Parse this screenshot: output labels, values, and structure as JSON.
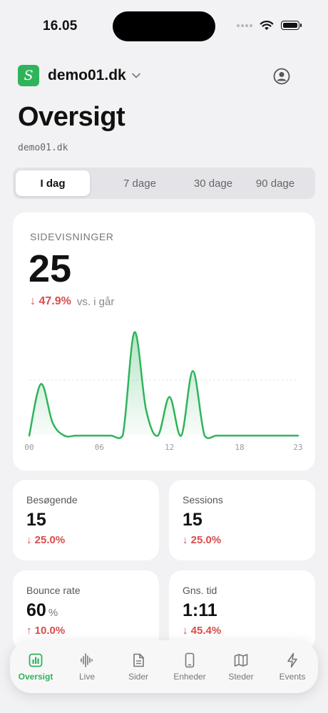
{
  "status": {
    "time": "16.05"
  },
  "header": {
    "site_name": "demo01.dk",
    "logo_letter": "S",
    "title": "Oversigt",
    "subtitle": "demo01.dk"
  },
  "periods": [
    {
      "label": "I dag",
      "active": true
    },
    {
      "label": "7 dage",
      "active": false
    },
    {
      "label": "30 dage",
      "active": false
    },
    {
      "label": "90 dage",
      "active": false
    }
  ],
  "pageviews": {
    "label": "SIDEVISNINGER",
    "value": "25",
    "delta": "↓ 47.9%",
    "delta_suffix": "vs. i går"
  },
  "chart_data": {
    "type": "area",
    "x": [
      0,
      1,
      2,
      3,
      4,
      5,
      6,
      7,
      8,
      9,
      10,
      11,
      12,
      13,
      14,
      15,
      16,
      17,
      18,
      19,
      20,
      21,
      22,
      23
    ],
    "values": [
      0,
      4,
      1,
      0,
      0,
      0,
      0,
      0,
      0,
      8,
      2,
      0,
      3,
      0,
      5,
      0,
      0,
      0,
      0,
      0,
      0,
      0,
      0,
      0
    ],
    "x_tick_labels": [
      "00",
      "06",
      "12",
      "18",
      "23"
    ],
    "color": "#2fb45a"
  },
  "stats": [
    {
      "label": "Besøgende",
      "value": "15",
      "unit": "",
      "delta": "↓ 25.0%"
    },
    {
      "label": "Sessions",
      "value": "15",
      "unit": "",
      "delta": "↓ 25.0%"
    },
    {
      "label": "Bounce rate",
      "value": "60",
      "unit": "%",
      "delta": "↑ 10.0%"
    },
    {
      "label": "Gns. tid",
      "value": "1:11",
      "unit": "",
      "delta": "↓ 45.4%"
    }
  ],
  "tabs": [
    {
      "label": "Oversigt",
      "icon": "chart-icon",
      "active": true
    },
    {
      "label": "Live",
      "icon": "waveform-icon",
      "active": false
    },
    {
      "label": "Sider",
      "icon": "document-icon",
      "active": false
    },
    {
      "label": "Enheder",
      "icon": "phone-icon",
      "active": false
    },
    {
      "label": "Steder",
      "icon": "map-icon",
      "active": false
    },
    {
      "label": "Events",
      "icon": "bolt-icon",
      "active": false
    }
  ],
  "colors": {
    "accent": "#2fb45a",
    "negative": "#d94c4c",
    "background": "#f2f2f4"
  }
}
